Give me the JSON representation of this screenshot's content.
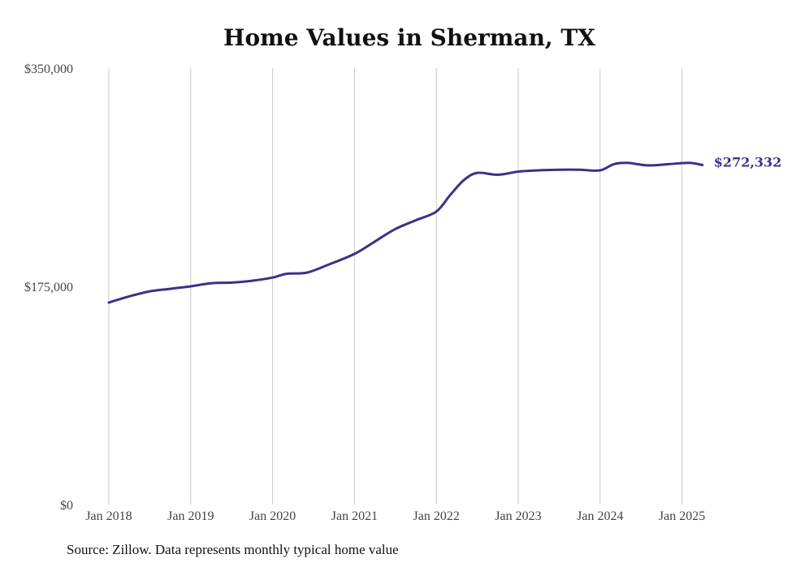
{
  "chart_data": {
    "type": "line",
    "title": "Home Values in Sherman, TX",
    "xlabel": "",
    "ylabel": "",
    "ylim": [
      0,
      350000
    ],
    "y_ticks": [
      "$0",
      "$175,000",
      "$350,000"
    ],
    "x_ticks": [
      "Jan 2018",
      "Jan 2019",
      "Jan 2020",
      "Jan 2021",
      "Jan 2022",
      "Jan 2023",
      "Jan 2024",
      "Jan 2025"
    ],
    "grid": "vertical",
    "line_color": "#3a3189",
    "end_label": "$272,332",
    "series": [
      {
        "x": [
          "2018-01",
          "2018-04",
          "2018-07",
          "2018-10",
          "2019-01",
          "2019-04",
          "2019-07",
          "2019-10",
          "2020-01",
          "2020-03",
          "2020-06",
          "2020-09",
          "2021-01",
          "2021-04",
          "2021-07",
          "2021-10",
          "2022-01",
          "2022-03",
          "2022-05",
          "2022-07",
          "2022-10",
          "2023-01",
          "2023-04",
          "2023-07",
          "2023-10",
          "2024-01",
          "2024-03",
          "2024-05",
          "2024-08",
          "2024-11",
          "2025-02",
          "2025-04"
        ],
        "values": [
          162000,
          167000,
          171000,
          173000,
          175000,
          177500,
          178000,
          179500,
          182000,
          185000,
          186000,
          192000,
          201000,
          211000,
          221000,
          228000,
          235000,
          248000,
          260000,
          266000,
          264500,
          267000,
          268000,
          268500,
          268500,
          268000,
          273000,
          274000,
          272000,
          273000,
          274000,
          272332
        ]
      }
    ],
    "source": "Source: Zillow. Data represents monthly typical home value"
  }
}
